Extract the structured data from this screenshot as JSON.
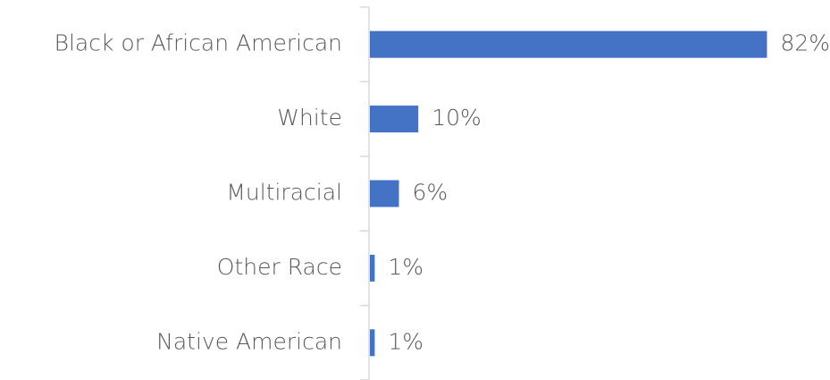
{
  "chart_data": {
    "type": "bar",
    "orientation": "horizontal",
    "categories": [
      "Black or African American",
      "White",
      "Multiracial",
      "Other Race",
      "Native American"
    ],
    "values": [
      82,
      10,
      6,
      1,
      1
    ],
    "value_labels": [
      "82%",
      "10%",
      "6%",
      "1%",
      "1%"
    ],
    "color": "#4472c4"
  }
}
